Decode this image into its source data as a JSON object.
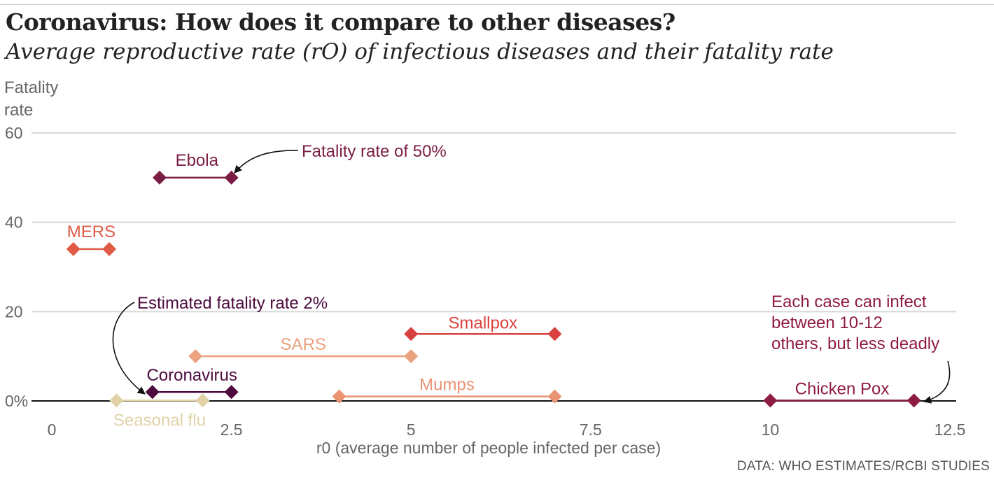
{
  "header": {
    "title": "Coronavirus: How does it compare to other diseases?",
    "subtitle": "Average reproductive rate (rO) of infectious diseases and their fatality rate"
  },
  "footer": {
    "source": "DATA: WHO ESTIMATES/RCBI STUDIES"
  },
  "chart_data": {
    "type": "range-dot",
    "title": "Coronavirus: How does it compare to other diseases?",
    "subtitle": "Average reproductive rate (rO) of infectious diseases and their fatality rate",
    "xlabel": "r0 (average number of people infected per case)",
    "ylabel": "Fatality\nrate",
    "xlim": [
      -0.6,
      12.7
    ],
    "ylim": [
      0,
      60
    ],
    "xticks": [
      0,
      2.5,
      5,
      7.5,
      10,
      12.5
    ],
    "xtick_labels": [
      "0",
      "2.5",
      "5",
      "7.5",
      "10",
      "12.5"
    ],
    "yticks": [
      0,
      20,
      40,
      60
    ],
    "ytick_labels": [
      "0%",
      "20",
      "40",
      "60"
    ],
    "grid": "horizontal",
    "series": [
      {
        "name": "Ebola",
        "r0_low": 1.5,
        "r0_high": 2.5,
        "fatality": 50,
        "color": "#7a1d44"
      },
      {
        "name": "MERS",
        "r0_low": 0.3,
        "r0_high": 0.8,
        "fatality": 34,
        "color": "#e05a45"
      },
      {
        "name": "Smallpox",
        "r0_low": 5,
        "r0_high": 7,
        "fatality": 15,
        "color": "#d9413f"
      },
      {
        "name": "SARS",
        "r0_low": 2,
        "r0_high": 5,
        "fatality": 10,
        "color": "#eaa37e"
      },
      {
        "name": "Coronavirus",
        "r0_low": 1.4,
        "r0_high": 2.5,
        "fatality": 2,
        "color": "#4c0a3d"
      },
      {
        "name": "Mumps",
        "r0_low": 4,
        "r0_high": 7,
        "fatality": 1,
        "color": "#e99373"
      },
      {
        "name": "Seasonal flu",
        "r0_low": 0.9,
        "r0_high": 2.1,
        "fatality": 0.1,
        "color": "#e0d2a6"
      },
      {
        "name": "Chicken Pox",
        "r0_low": 10,
        "r0_high": 12,
        "fatality": 0.1,
        "color": "#8e1b43"
      }
    ],
    "annotations": [
      {
        "text": "Fatality rate of 50%",
        "color": "#7a1d44"
      },
      {
        "text": "Estimated fatality rate 2%",
        "color": "#4c0a3d"
      },
      {
        "text": "Each case can infect\nbetween 10-12\nothers, but less deadly",
        "color": "#8e1b43"
      }
    ]
  }
}
